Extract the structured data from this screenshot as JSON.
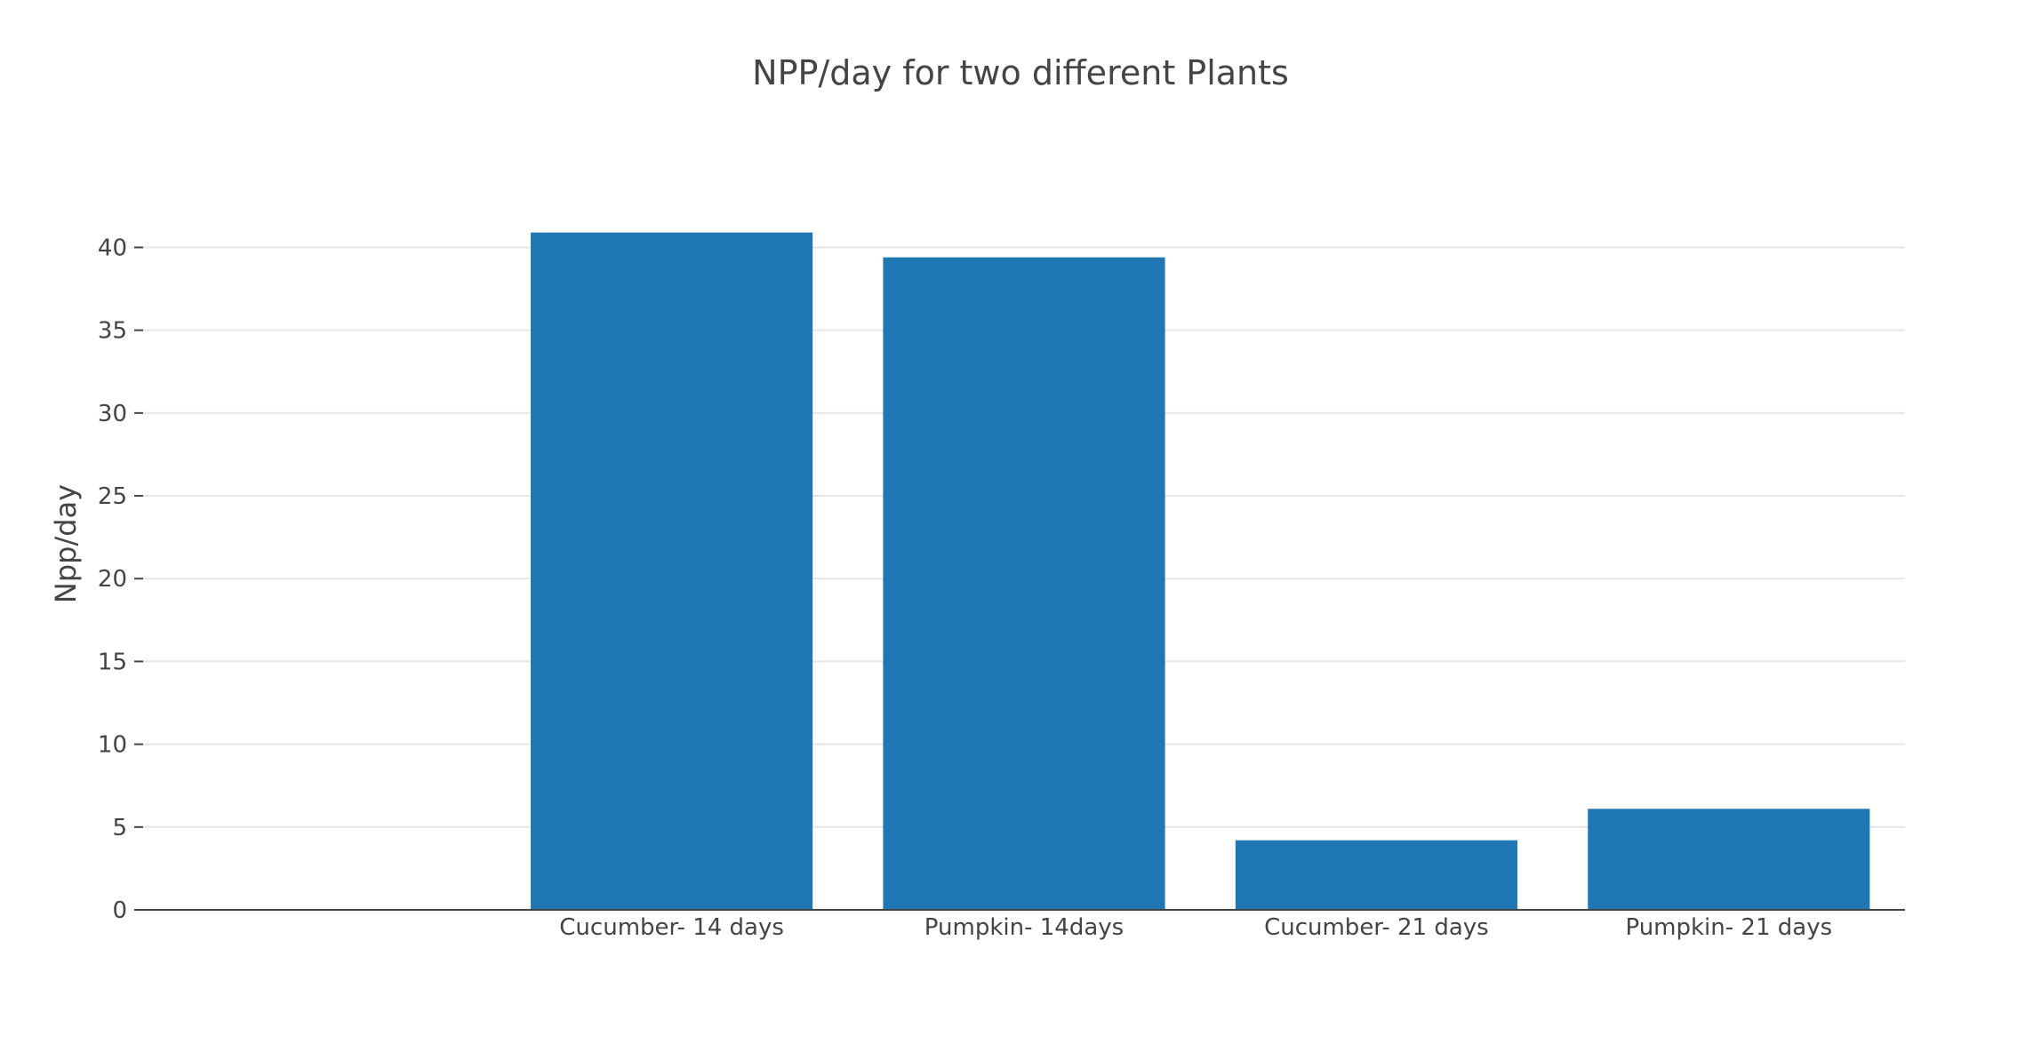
{
  "chart_data": {
    "type": "bar",
    "title": "NPP/day for two different Plants",
    "xlabel": "",
    "ylabel": "Npp/day",
    "categories": [
      "",
      "Cucumber- 14 days",
      "Pumpkin- 14days",
      "Cucumber- 21 days",
      "Pumpkin- 21 days"
    ],
    "values": [
      null,
      40.9,
      39.4,
      4.2,
      6.1
    ],
    "ylim": [
      0,
      42.6
    ],
    "yticks": [
      0,
      5,
      10,
      15,
      20,
      25,
      30,
      35,
      40
    ],
    "grid": true,
    "legend": "none",
    "colors": {
      "bar": "#1f77b4",
      "grid": "#e6e6e6",
      "axis": "#444444",
      "text": "#444444"
    }
  }
}
